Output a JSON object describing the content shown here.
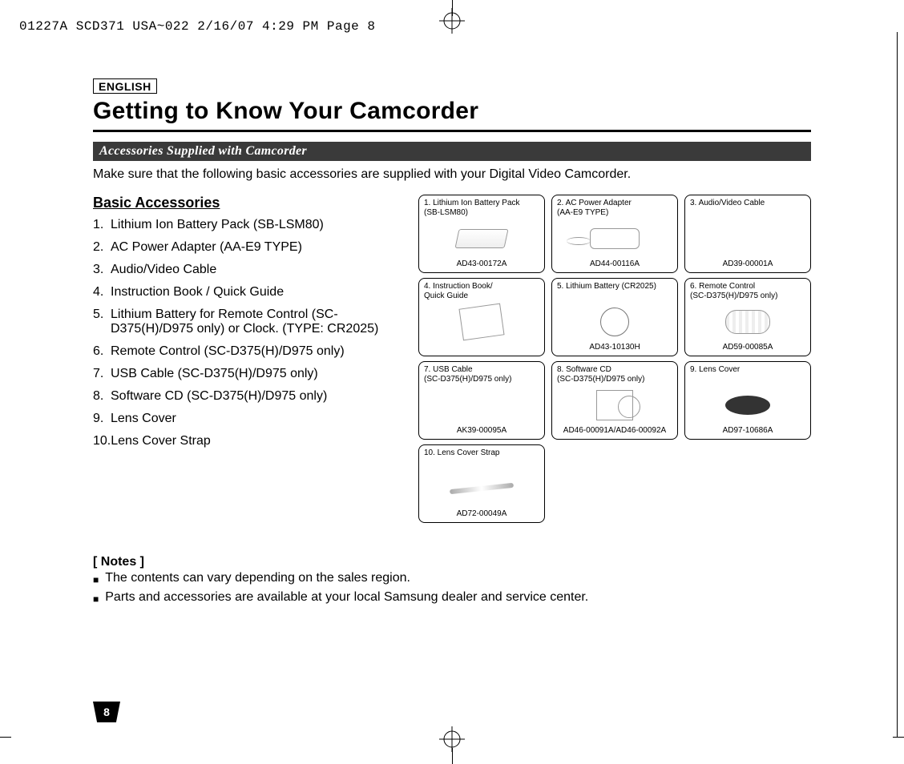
{
  "crop_header": "01227A SCD371 USA~022  2/16/07 4:29 PM  Page 8",
  "language": "ENGLISH",
  "title": "Getting to Know Your Camcorder",
  "subhead": "Accessories Supplied with Camcorder",
  "intro": "Make sure that the following basic accessories are supplied with your Digital Video Camcorder.",
  "list_title": "Basic Accessories",
  "page_number": "8",
  "list": [
    {
      "n": "1.",
      "t": "Lithium Ion Battery Pack (SB-LSM80)"
    },
    {
      "n": "2.",
      "t": "AC Power Adapter (AA-E9 TYPE)"
    },
    {
      "n": "3.",
      "t": "Audio/Video Cable"
    },
    {
      "n": "4.",
      "t": "Instruction Book / Quick Guide"
    },
    {
      "n": "5.",
      "t": "Lithium Battery for Remote Control (SC-D375(H)/D975 only) or Clock. (TYPE: CR2025)"
    },
    {
      "n": "6.",
      "t": "Remote Control (SC-D375(H)/D975 only)"
    },
    {
      "n": "7.",
      "t": "USB Cable (SC-D375(H)/D975 only)"
    },
    {
      "n": "8.",
      "t": "Software CD (SC-D375(H)/D975 only)"
    },
    {
      "n": "9.",
      "t": "Lens Cover"
    },
    {
      "n": "10.",
      "t": "Lens Cover Strap"
    }
  ],
  "cards": [
    {
      "title": "1. Lithium Ion Battery Pack\n    (SB-LSM80)",
      "code": "AD43-00172A",
      "ill": "ill-battery"
    },
    {
      "title": "2. AC Power Adapter\n    (AA-E9 TYPE)",
      "code": "AD44-00116A",
      "ill": "ill-adapter"
    },
    {
      "title": "3. Audio/Video Cable",
      "code": "AD39-00001A",
      "ill": "ill-cable"
    },
    {
      "title": "4. Instruction Book/\n    Quick Guide",
      "code": "",
      "ill": "ill-book"
    },
    {
      "title": "5. Lithium Battery (CR2025)",
      "code": "AD43-10130H",
      "ill": "ill-coin"
    },
    {
      "title": "6. Remote Control\n    (SC-D375(H)/D975 only)",
      "code": "AD59-00085A",
      "ill": "ill-remote"
    },
    {
      "title": "7. USB Cable\n    (SC-D375(H)/D975 only)",
      "code": "AK39-00095A",
      "ill": "ill-usb"
    },
    {
      "title": "8. Software CD\n    (SC-D375(H)/D975 only)",
      "code": "AD46-00091A/AD46-00092A",
      "ill": "ill-cd"
    },
    {
      "title": "9. Lens Cover",
      "code": "AD97-10686A",
      "ill": "ill-cover"
    },
    {
      "title": "10. Lens Cover Strap",
      "code": "AD72-00049A",
      "ill": "ill-strap"
    }
  ],
  "notes_title": "[ Notes ]",
  "notes": [
    "The contents can vary depending on the sales region.",
    "Parts and accessories are available at your local Samsung dealer and service center."
  ],
  "colors": {
    "subhead_bg": "#3a3a3a",
    "text": "#000000",
    "bg": "#ffffff"
  }
}
